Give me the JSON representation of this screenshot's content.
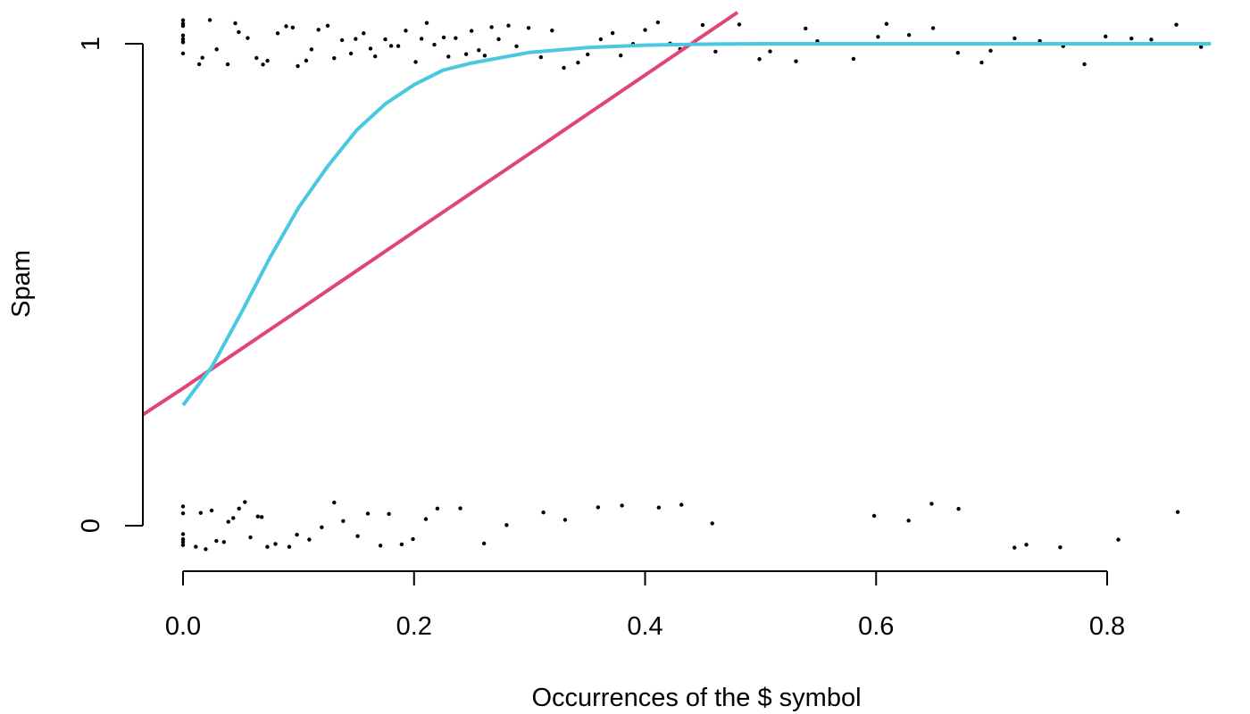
{
  "chart_data": {
    "type": "scatter",
    "title": "",
    "xlabel": "Occurrences of the $ symbol",
    "ylabel": "Spam",
    "xlim": [
      0,
      0.89
    ],
    "ylim": [
      0,
      1
    ],
    "x_ticks": [
      0.0,
      0.2,
      0.4,
      0.6,
      0.8
    ],
    "x_tick_labels": [
      "0.0",
      "0.2",
      "0.4",
      "0.6",
      "0.8"
    ],
    "y_ticks": [
      0,
      1
    ],
    "y_tick_labels": [
      "0",
      "1"
    ],
    "jitter": "vertical jitter around 0 and 1",
    "grid": false,
    "legend": "none",
    "series": [
      {
        "kind": "points",
        "color": "#000000",
        "points_y1": [
          [
            0.0,
            1
          ],
          [
            0.0,
            1
          ],
          [
            0.0,
            1
          ],
          [
            0.0,
            1
          ],
          [
            0.0,
            1
          ],
          [
            0.0,
            1
          ],
          [
            0.0,
            1
          ],
          [
            0.0,
            1
          ],
          [
            0.012,
            1
          ],
          [
            0.018,
            1
          ],
          [
            0.025,
            1
          ],
          [
            0.031,
            1
          ],
          [
            0.038,
            1
          ],
          [
            0.044,
            1
          ],
          [
            0.05,
            1
          ],
          [
            0.056,
            1
          ],
          [
            0.062,
            1
          ],
          [
            0.068,
            1
          ],
          [
            0.075,
            1
          ],
          [
            0.081,
            1
          ],
          [
            0.088,
            1
          ],
          [
            0.094,
            1
          ],
          [
            0.1,
            1
          ],
          [
            0.106,
            1
          ],
          [
            0.112,
            1
          ],
          [
            0.118,
            1
          ],
          [
            0.125,
            1
          ],
          [
            0.131,
            1
          ],
          [
            0.138,
            1
          ],
          [
            0.144,
            1
          ],
          [
            0.15,
            1
          ],
          [
            0.156,
            1
          ],
          [
            0.162,
            1
          ],
          [
            0.168,
            1
          ],
          [
            0.175,
            1
          ],
          [
            0.181,
            1
          ],
          [
            0.188,
            1
          ],
          [
            0.194,
            1
          ],
          [
            0.2,
            1
          ],
          [
            0.206,
            1
          ],
          [
            0.212,
            1
          ],
          [
            0.218,
            1
          ],
          [
            0.225,
            1
          ],
          [
            0.231,
            1
          ],
          [
            0.238,
            1
          ],
          [
            0.244,
            1
          ],
          [
            0.25,
            1
          ],
          [
            0.256,
            1
          ],
          [
            0.262,
            1
          ],
          [
            0.268,
            1
          ],
          [
            0.275,
            1
          ],
          [
            0.281,
            1
          ],
          [
            0.29,
            1
          ],
          [
            0.3,
            1
          ],
          [
            0.31,
            1
          ],
          [
            0.32,
            1
          ],
          [
            0.33,
            1
          ],
          [
            0.34,
            1
          ],
          [
            0.35,
            1
          ],
          [
            0.36,
            1
          ],
          [
            0.37,
            1
          ],
          [
            0.38,
            1
          ],
          [
            0.39,
            1
          ],
          [
            0.4,
            1
          ],
          [
            0.41,
            1
          ],
          [
            0.42,
            1
          ],
          [
            0.43,
            1
          ],
          [
            0.45,
            1
          ],
          [
            0.46,
            1
          ],
          [
            0.48,
            1
          ],
          [
            0.5,
            1
          ],
          [
            0.51,
            1
          ],
          [
            0.53,
            1
          ],
          [
            0.54,
            1
          ],
          [
            0.55,
            1
          ],
          [
            0.58,
            1
          ],
          [
            0.6,
            1
          ],
          [
            0.61,
            1
          ],
          [
            0.63,
            1
          ],
          [
            0.65,
            1
          ],
          [
            0.67,
            1
          ],
          [
            0.69,
            1
          ],
          [
            0.7,
            1
          ],
          [
            0.72,
            1
          ],
          [
            0.74,
            1
          ],
          [
            0.76,
            1
          ],
          [
            0.78,
            1
          ],
          [
            0.8,
            1
          ],
          [
            0.82,
            1
          ],
          [
            0.84,
            1
          ],
          [
            0.86,
            1
          ],
          [
            0.88,
            1
          ]
        ],
        "points_y0": [
          [
            0.0,
            0
          ],
          [
            0.0,
            0
          ],
          [
            0.0,
            0
          ],
          [
            0.0,
            0
          ],
          [
            0.0,
            0
          ],
          [
            0.0,
            0
          ],
          [
            0.01,
            0
          ],
          [
            0.015,
            0
          ],
          [
            0.02,
            0
          ],
          [
            0.025,
            0
          ],
          [
            0.03,
            0
          ],
          [
            0.035,
            0
          ],
          [
            0.04,
            0
          ],
          [
            0.045,
            0
          ],
          [
            0.05,
            0
          ],
          [
            0.055,
            0
          ],
          [
            0.06,
            0
          ],
          [
            0.065,
            0
          ],
          [
            0.07,
            0
          ],
          [
            0.075,
            0
          ],
          [
            0.08,
            0
          ],
          [
            0.09,
            0
          ],
          [
            0.1,
            0
          ],
          [
            0.11,
            0
          ],
          [
            0.12,
            0
          ],
          [
            0.13,
            0
          ],
          [
            0.14,
            0
          ],
          [
            0.15,
            0
          ],
          [
            0.16,
            0
          ],
          [
            0.17,
            0
          ],
          [
            0.18,
            0
          ],
          [
            0.19,
            0
          ],
          [
            0.2,
            0
          ],
          [
            0.21,
            0
          ],
          [
            0.22,
            0
          ],
          [
            0.24,
            0
          ],
          [
            0.26,
            0
          ],
          [
            0.28,
            0
          ],
          [
            0.31,
            0
          ],
          [
            0.33,
            0
          ],
          [
            0.36,
            0
          ],
          [
            0.38,
            0
          ],
          [
            0.41,
            0
          ],
          [
            0.43,
            0
          ],
          [
            0.46,
            0
          ],
          [
            0.6,
            0
          ],
          [
            0.63,
            0
          ],
          [
            0.65,
            0
          ],
          [
            0.67,
            0
          ],
          [
            0.72,
            0
          ],
          [
            0.73,
            0
          ],
          [
            0.76,
            0
          ],
          [
            0.81,
            0
          ],
          [
            0.86,
            0
          ]
        ]
      },
      {
        "kind": "line",
        "model": "linear",
        "color": "#E0457A",
        "x": [
          -0.035,
          0.0,
          0.1,
          0.2,
          0.3,
          0.4,
          0.48
        ],
        "y": [
          0.23,
          0.285,
          0.447,
          0.61,
          0.772,
          0.935,
          1.065
        ]
      },
      {
        "kind": "line",
        "model": "logistic",
        "color": "#48C9E0",
        "x": [
          0.0,
          0.025,
          0.05,
          0.075,
          0.1,
          0.125,
          0.15,
          0.175,
          0.2,
          0.225,
          0.25,
          0.3,
          0.35,
          0.4,
          0.45,
          0.5,
          0.6,
          0.7,
          0.8,
          0.89
        ],
        "y": [
          0.25,
          0.33,
          0.44,
          0.555,
          0.66,
          0.745,
          0.82,
          0.875,
          0.915,
          0.945,
          0.96,
          0.982,
          0.992,
          0.997,
          0.999,
          1.0,
          1.0,
          1.0,
          1.0,
          1.0
        ]
      }
    ]
  }
}
